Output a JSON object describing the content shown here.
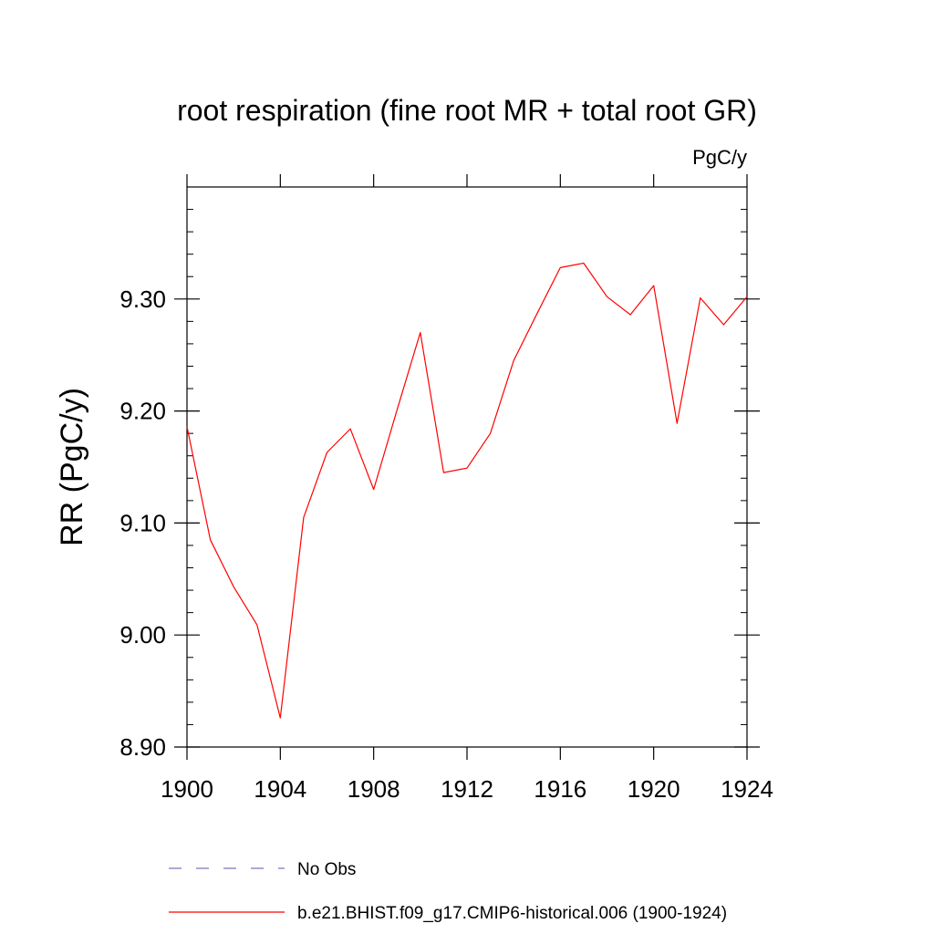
{
  "chart_data": {
    "type": "line",
    "title": "root respiration (fine root MR + total root GR)",
    "units_label": "PgC/y",
    "ylabel": "RR  (PgC/y)",
    "xlabel": "",
    "xlim": [
      1900,
      1924
    ],
    "ylim": [
      8.9,
      9.4
    ],
    "x_ticks": [
      1900,
      1904,
      1908,
      1912,
      1916,
      1920,
      1924
    ],
    "x_tick_labels": [
      "1900",
      "1904",
      "1908",
      "1912",
      "1916",
      "1920",
      "1924"
    ],
    "y_ticks": [
      8.9,
      9.0,
      9.1,
      9.2,
      9.3
    ],
    "y_tick_labels": [
      "8.90",
      "9.00",
      "9.10",
      "9.20",
      "9.30"
    ],
    "grid": false,
    "legend_position": "bottom",
    "series": [
      {
        "name": "b.e21.BHIST.f09_g17.CMIP6-historical.006 (1900-1924)",
        "color": "#ff0000",
        "dash": "solid",
        "x": [
          1900,
          1901,
          1902,
          1903,
          1904,
          1905,
          1906,
          1907,
          1908,
          1909,
          1910,
          1911,
          1912,
          1913,
          1914,
          1915,
          1916,
          1917,
          1918,
          1919,
          1920,
          1921,
          1922,
          1923,
          1924
        ],
        "y": [
          9.186,
          9.085,
          9.043,
          9.009,
          8.926,
          9.105,
          9.163,
          9.184,
          9.13,
          9.201,
          9.27,
          9.145,
          9.149,
          9.18,
          9.245,
          9.287,
          9.328,
          9.332,
          9.302,
          9.286,
          9.312,
          9.189,
          9.301,
          9.277,
          9.302
        ]
      }
    ],
    "legend": [
      {
        "label": "No Obs",
        "color": "#7777bb",
        "dash": "dashed"
      },
      {
        "label": "b.e21.BHIST.f09_g17.CMIP6-historical.006 (1900-1924)",
        "color": "#ff0000",
        "dash": "solid"
      }
    ]
  }
}
